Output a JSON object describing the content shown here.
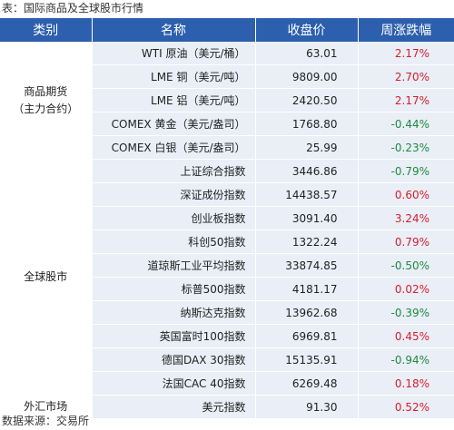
{
  "caption": "表：国际商品及全球股市行情",
  "source": "数据来源：交易所",
  "headers": {
    "category": "类别",
    "name": "名称",
    "close": "收盘价",
    "change": "周涨跌幅"
  },
  "groups": {
    "commodities": {
      "line1": "商品期货",
      "line2": "（主力合约）"
    },
    "global_stocks": {
      "label": "全球股市"
    },
    "forex": {
      "label": "外汇市场"
    }
  },
  "colors": {
    "header_bg": "#2c5fad",
    "row_bg": "#e9eef7",
    "up": "#d6202a",
    "down": "#1f8a3e"
  },
  "rows": [
    {
      "name": "WTI 原油（美元/桶）",
      "close": "63.01",
      "change": "2.17%",
      "dir": "up"
    },
    {
      "name": "LME 铜（美元/吨）",
      "close": "9809.00",
      "change": "2.70%",
      "dir": "up"
    },
    {
      "name": "LME 铝（美元/吨）",
      "close": "2420.50",
      "change": "2.17%",
      "dir": "up"
    },
    {
      "name": "COMEX 黄金（美元/盎司）",
      "close": "1768.80",
      "change": "-0.44%",
      "dir": "down"
    },
    {
      "name": "COMEX 白银（美元/盎司）",
      "close": "25.99",
      "change": "-0.23%",
      "dir": "down"
    },
    {
      "name": "上证综合指数",
      "close": "3446.86",
      "change": "-0.79%",
      "dir": "down"
    },
    {
      "name": "深证成份指数",
      "close": "14438.57",
      "change": "0.60%",
      "dir": "up"
    },
    {
      "name": "创业板指数",
      "close": "3091.40",
      "change": "3.24%",
      "dir": "up"
    },
    {
      "name": "科创50指数",
      "close": "1322.24",
      "change": "0.79%",
      "dir": "up"
    },
    {
      "name": "道琼斯工业平均指数",
      "close": "33874.85",
      "change": "-0.50%",
      "dir": "down"
    },
    {
      "name": "标普500指数",
      "close": "4181.17",
      "change": "0.02%",
      "dir": "up"
    },
    {
      "name": "纳斯达克指数",
      "close": "13962.68",
      "change": "-0.39%",
      "dir": "down"
    },
    {
      "name": "英国富时100指数",
      "close": "6969.81",
      "change": "0.45%",
      "dir": "up"
    },
    {
      "name": "德国DAX 30指数",
      "close": "15135.91",
      "change": "-0.94%",
      "dir": "down"
    },
    {
      "name": "法国CAC 40指数",
      "close": "6269.48",
      "change": "0.18%",
      "dir": "up"
    },
    {
      "name": "美元指数",
      "close": "91.30",
      "change": "0.52%",
      "dir": "up"
    }
  ]
}
